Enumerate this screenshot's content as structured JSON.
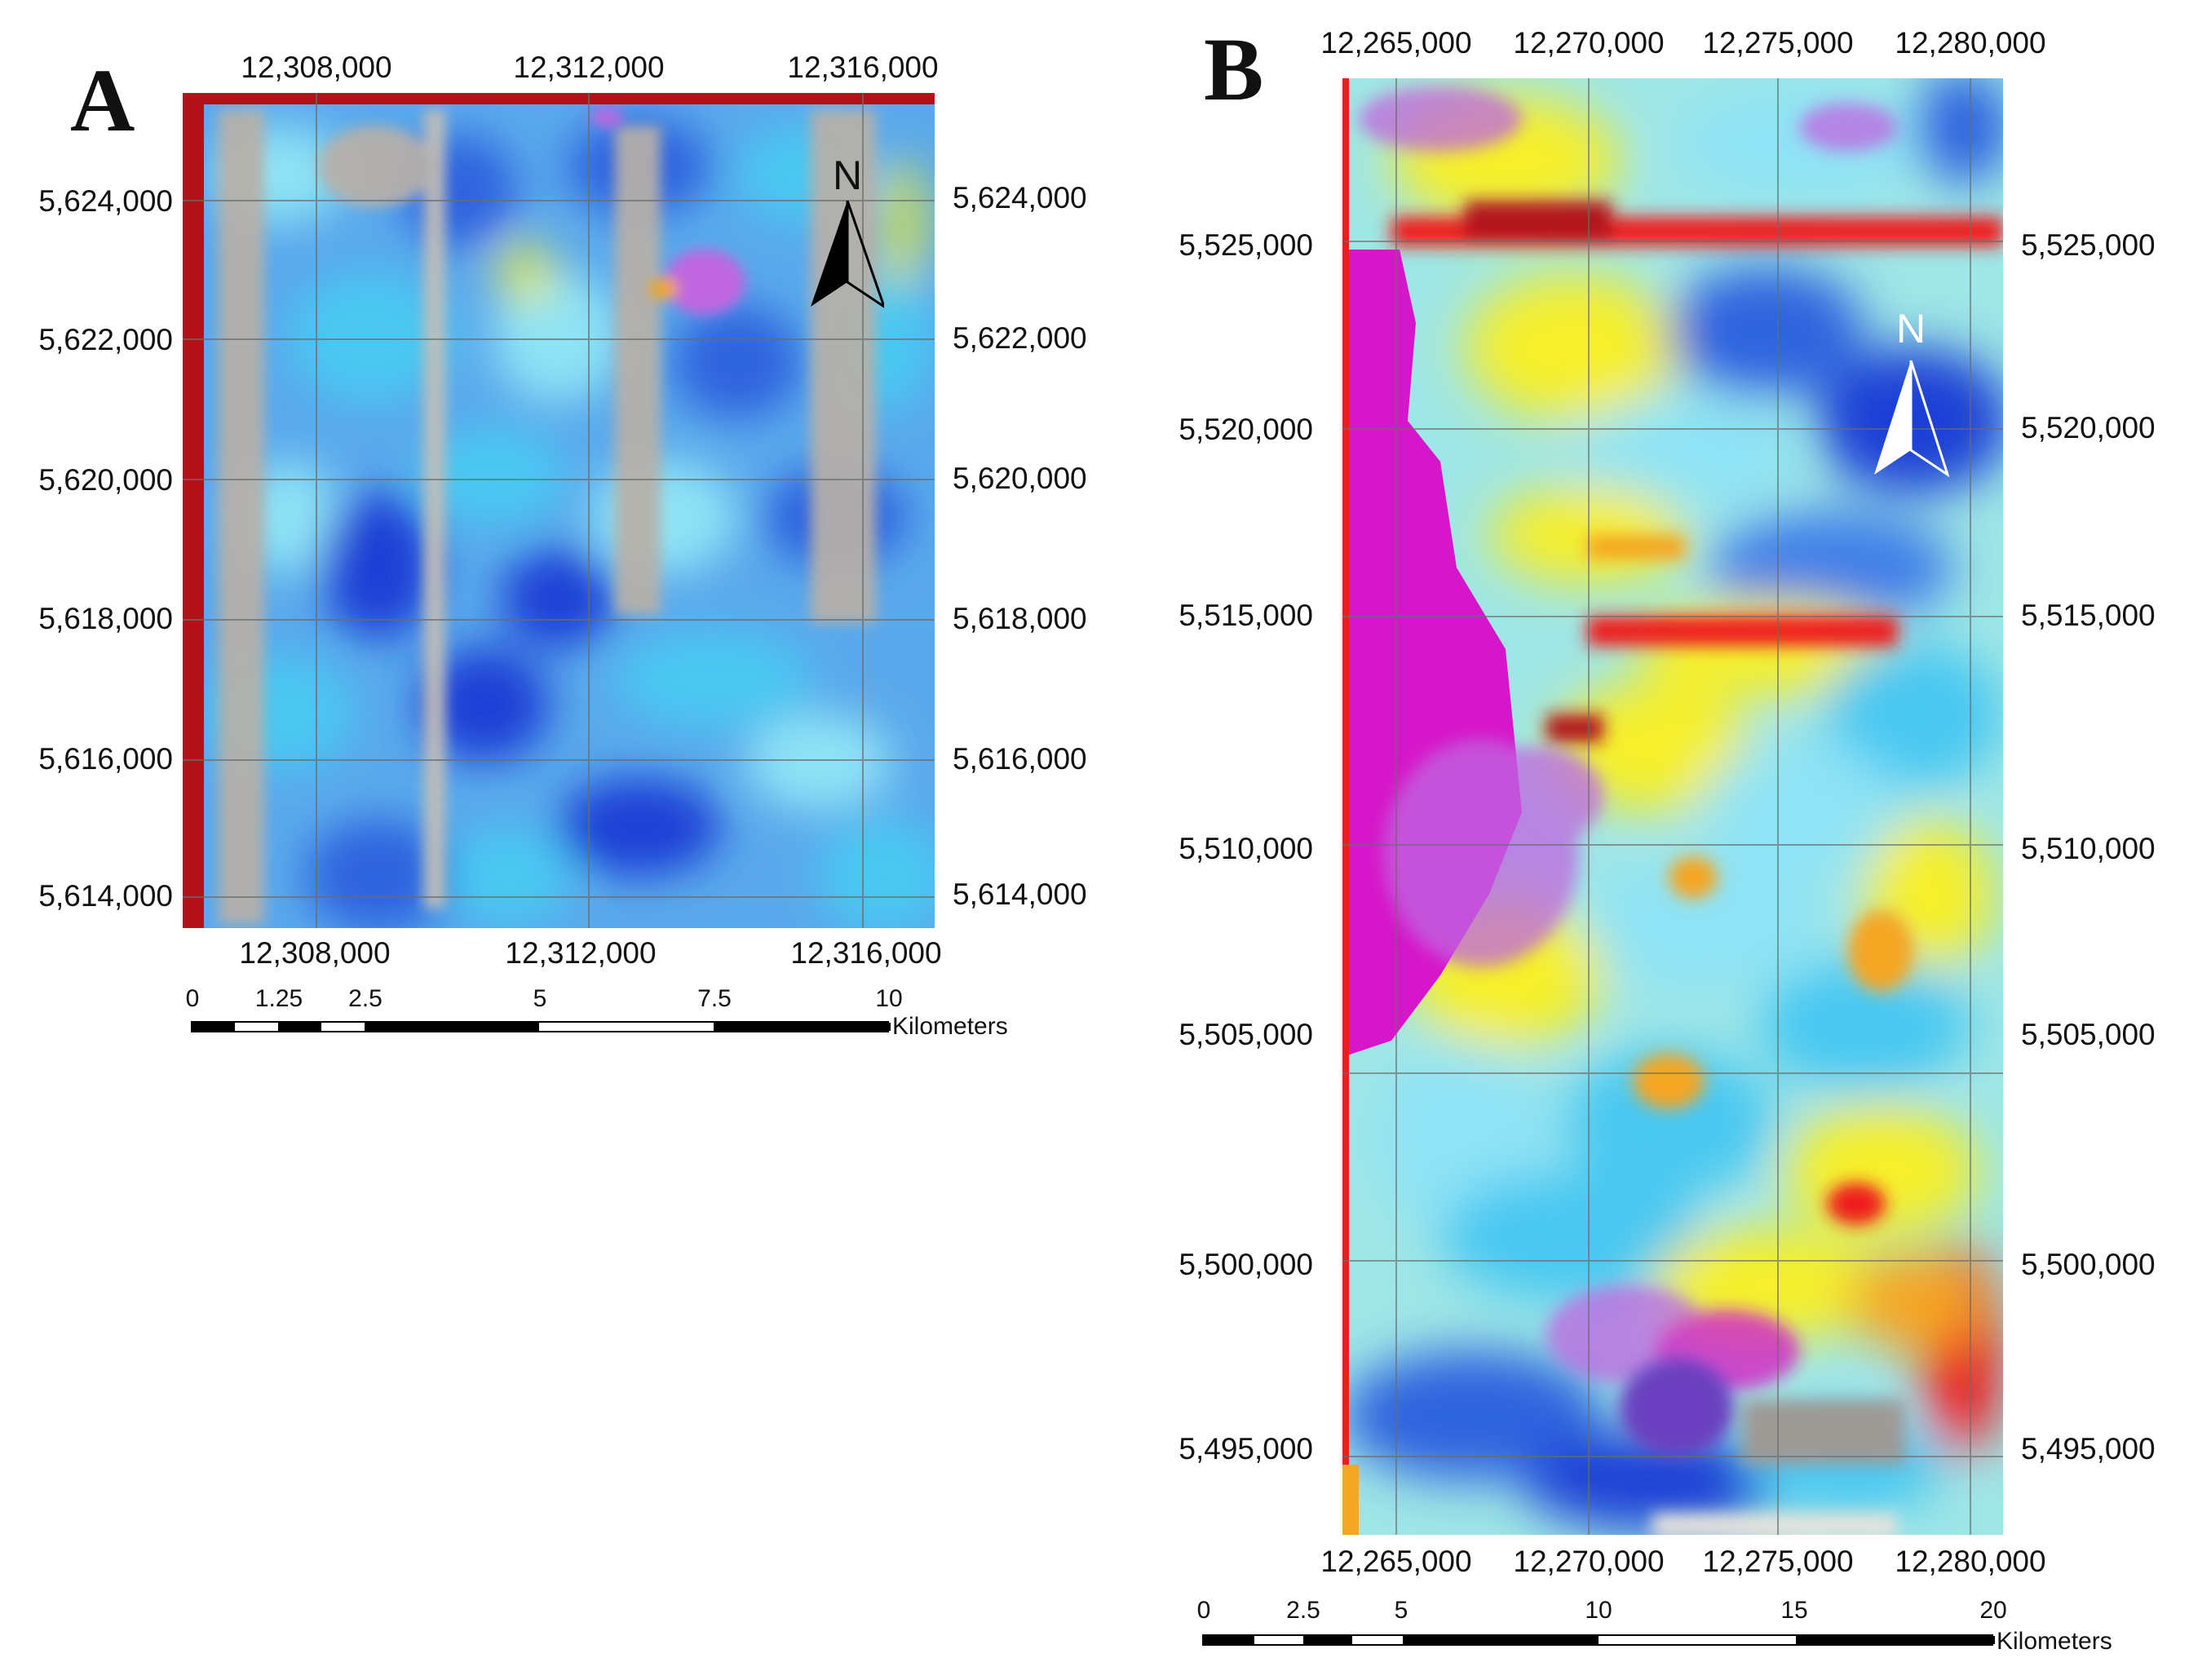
{
  "panels": [
    {
      "letter": "A",
      "top_ticks": [
        "12,308,000",
        "12,312,000",
        "12,316,000"
      ],
      "bottom_ticks": [
        "12,308,000",
        "12,312,000",
        "12,316,000"
      ],
      "left_ticks": [
        "5,624,000",
        "5,622,000",
        "5,620,000",
        "5,618,000",
        "5,616,000",
        "5,614,000"
      ],
      "right_ticks": [
        "5,624,000",
        "5,622,000",
        "5,620,000",
        "5,618,000",
        "5,616,000",
        "5,614,000"
      ],
      "north_label": "N",
      "north_color": "#000000",
      "scale": {
        "labels": [
          "0",
          "1.25",
          "2.5",
          "5",
          "7.5",
          "10"
        ],
        "unit": "Kilometers"
      }
    },
    {
      "letter": "B",
      "top_ticks": [
        "12,265,000",
        "12,270,000",
        "12,275,000",
        "12,280,000"
      ],
      "bottom_ticks": [
        "12,265,000",
        "12,270,000",
        "12,275,000",
        "12,280,000"
      ],
      "left_ticks": [
        "5,525,000",
        "5,520,000",
        "5,515,000",
        "5,510,000",
        "5,505,000",
        "5,500,000",
        "5,495,000"
      ],
      "right_ticks": [
        "5,525,000",
        "5,520,000",
        "5,515,000",
        "5,510,000",
        "5,505,000",
        "5,500,000",
        "5,495,000"
      ],
      "north_label": "N",
      "north_color": "#ffffff",
      "scale": {
        "labels": [
          "0",
          "2.5",
          "5",
          "10",
          "15",
          "20"
        ],
        "unit": "Kilometers"
      }
    }
  ],
  "colors": {
    "deep_blue": "#1a3fd6",
    "blue": "#3f7fe8",
    "cyan": "#49c8f2",
    "light_cyan": "#8fe3f5",
    "yellow": "#f6ef2a",
    "orange": "#f5a623",
    "red": "#ee1c1c",
    "dark_red": "#b3121a",
    "magenta": "#d616c9",
    "violet": "#c066e0",
    "grey": "#b8b0a8"
  }
}
